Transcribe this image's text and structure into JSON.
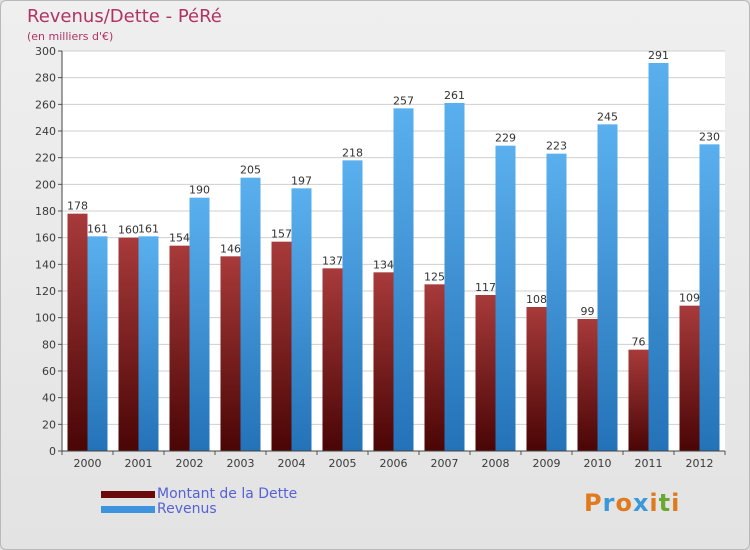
{
  "header": {
    "title": "Revenus/Dette - PéRé",
    "subtitle": "(en milliers d'€)"
  },
  "chart_data": {
    "type": "bar",
    "title": "Revenus/Dette - PéRé",
    "subtitle": "(en milliers d'€)",
    "xlabel": "",
    "ylabel": "",
    "ylim": [
      0,
      300
    ],
    "ytick_step": 20,
    "grid": true,
    "categories": [
      "2000",
      "2001",
      "2002",
      "2003",
      "2004",
      "2005",
      "2006",
      "2007",
      "2008",
      "2009",
      "2010",
      "2011",
      "2012"
    ],
    "series": [
      {
        "name": "Montant de la Dette",
        "color": "#8a1a1a",
        "values": [
          178,
          160,
          154,
          146,
          157,
          137,
          134,
          125,
          117,
          108,
          99,
          76,
          109
        ]
      },
      {
        "name": "Revenus",
        "color": "#3d93de",
        "values": [
          161,
          161,
          190,
          205,
          197,
          218,
          257,
          261,
          229,
          223,
          245,
          291,
          230
        ]
      }
    ]
  },
  "legend": {
    "items": [
      {
        "label": "Montant de la Dette",
        "color": "#6a0a0a"
      },
      {
        "label": "Revenus",
        "color": "#3d93de"
      }
    ]
  },
  "logo": {
    "text": "Proxiti",
    "colors": [
      "#e07a1f",
      "#3a9ad9",
      "#e07a1f",
      "#3a9ad9",
      "#e07a1f",
      "#6aa832",
      "#e07a1f"
    ]
  }
}
